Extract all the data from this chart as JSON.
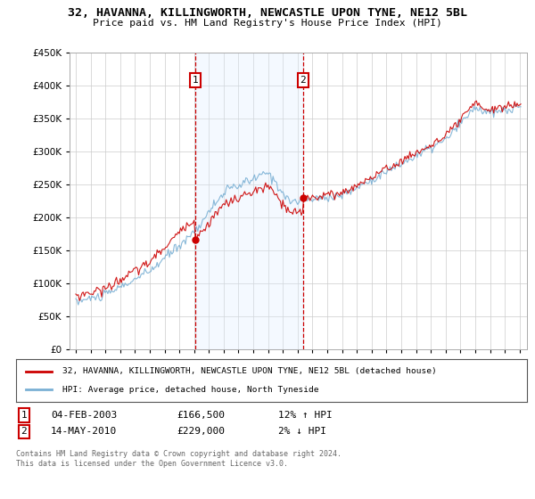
{
  "title": "32, HAVANNA, KILLINGWORTH, NEWCASTLE UPON TYNE, NE12 5BL",
  "subtitle": "Price paid vs. HM Land Registry's House Price Index (HPI)",
  "legend_line1": "32, HAVANNA, KILLINGWORTH, NEWCASTLE UPON TYNE, NE12 5BL (detached house)",
  "legend_line2": "HPI: Average price, detached house, North Tyneside",
  "marker1_date": "04-FEB-2003",
  "marker1_price": "£166,500",
  "marker1_hpi": "12% ↑ HPI",
  "marker2_date": "14-MAY-2010",
  "marker2_price": "£229,000",
  "marker2_hpi": "2% ↓ HPI",
  "footer": "Contains HM Land Registry data © Crown copyright and database right 2024.\nThis data is licensed under the Open Government Licence v3.0.",
  "red_color": "#cc0000",
  "blue_color": "#7ab0d4",
  "shading_color": "#ddeeff",
  "background_color": "#ffffff",
  "ylim": [
    0,
    450000
  ],
  "yticks": [
    0,
    50000,
    100000,
    150000,
    200000,
    250000,
    300000,
    350000,
    400000,
    450000
  ],
  "marker1_x": 2003.08,
  "marker2_x": 2010.37,
  "sale1_value": 166500,
  "sale2_value": 229000
}
